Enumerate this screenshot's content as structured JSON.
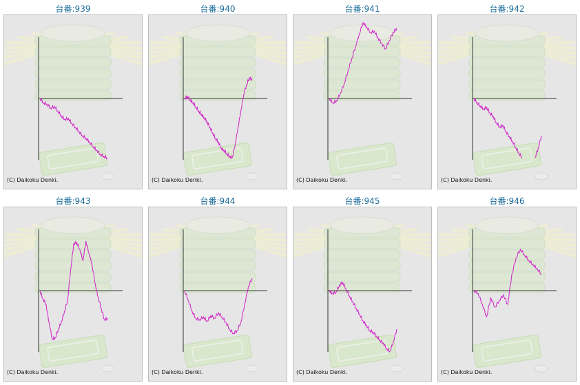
{
  "copyright": "(C) Daikoku Denki.",
  "series_color": "#d020c8",
  "chart_data": [
    {
      "type": "line",
      "title": "台番:939",
      "values": [
        0,
        -6,
        -8,
        -14,
        -11,
        -18,
        -25,
        -30,
        -29,
        -36,
        -42,
        -48,
        -54,
        -58,
        -63,
        -70,
        -75,
        -81,
        -84,
        -86
      ]
    },
    {
      "type": "line",
      "title": "台番:940",
      "values": [
        0,
        3,
        -2,
        -6,
        -12,
        -18,
        -23,
        -28,
        -34,
        -42,
        -50,
        -58,
        -63,
        -72,
        -75,
        -80,
        -84,
        -85,
        -66,
        -42,
        -18,
        6,
        20,
        30,
        28
      ]
    },
    {
      "type": "line",
      "title": "台番:941",
      "values": [
        0,
        -6,
        -3,
        8,
        22,
        40,
        58,
        76,
        94,
        110,
        104,
        96,
        98,
        88,
        80,
        72,
        84,
        96,
        102
      ]
    },
    {
      "type": "line",
      "title": "台番:942",
      "values": [
        0,
        -6,
        -11,
        -15,
        -13,
        -21,
        -26,
        -35,
        -41,
        -39,
        -48,
        -55,
        -62,
        -71,
        -79,
        -86,
        null,
        null,
        null,
        -86,
        -72,
        -54
      ]
    },
    {
      "type": "line",
      "title": "台番:943",
      "values": [
        0,
        -12,
        -20,
        -47,
        -70,
        -68,
        -56,
        -45,
        -30,
        -14,
        30,
        68,
        70,
        60,
        44,
        72,
        54,
        38,
        10,
        -10,
        -26,
        -42,
        -40
      ]
    },
    {
      "type": "line",
      "title": "台番:944",
      "values": [
        0,
        -14,
        -30,
        -40,
        -42,
        -38,
        -44,
        -36,
        -40,
        -32,
        -38,
        -46,
        -56,
        -62,
        -58,
        -46,
        -20,
        6,
        18
      ]
    },
    {
      "type": "line",
      "title": "台番:945",
      "values": [
        0,
        -4,
        -2,
        8,
        12,
        2,
        -8,
        -16,
        -26,
        -34,
        -44,
        -50,
        -58,
        -60,
        -66,
        -72,
        -76,
        -84,
        -88,
        -74,
        -56
      ]
    },
    {
      "type": "line",
      "title": "台番:946",
      "values": [
        0,
        -4,
        -20,
        -38,
        -10,
        -24,
        -14,
        -6,
        -20,
        24,
        48,
        60,
        52,
        44,
        38,
        32,
        24
      ]
    }
  ]
}
